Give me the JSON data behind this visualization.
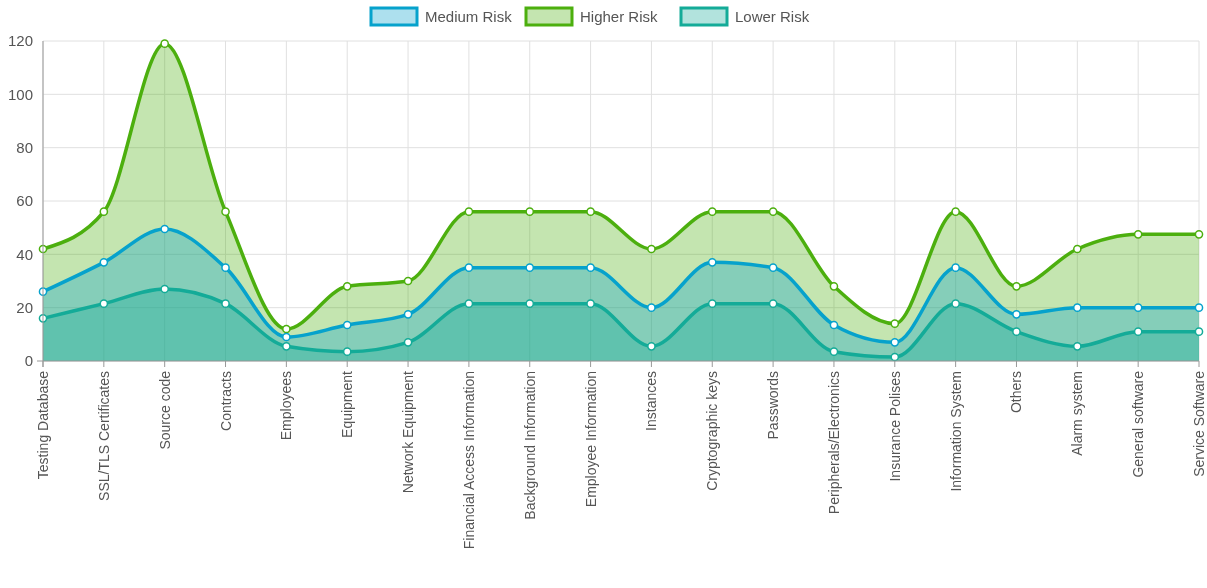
{
  "chart_data": {
    "type": "area",
    "categories": [
      "Testing Database",
      "SSL/TLS Certificates",
      "Source code",
      "Contracts",
      "Employees",
      "Equipment",
      "Network Equipment",
      "Financial Access Information",
      "Background Information",
      "Employee Information",
      "Instances",
      "Cryptographic keys",
      "Passwords",
      "Peripherals/Electronics",
      "Insurance Polises",
      "Information System",
      "Others",
      "Alarm system",
      "General software",
      "Service Software"
    ],
    "series": [
      {
        "name": "Higher Risk",
        "color": "#4caf0e",
        "values": [
          42,
          56,
          119,
          56,
          12,
          28,
          30,
          56,
          56,
          56,
          42,
          56,
          56,
          28,
          14,
          56,
          28,
          42,
          47.5,
          47.5
        ]
      },
      {
        "name": "Medium Risk",
        "color": "#06a2cc",
        "values": [
          26,
          37,
          49.5,
          35,
          9,
          13.5,
          17.5,
          35,
          35,
          35,
          20,
          37,
          35,
          13.5,
          7,
          35,
          17.5,
          20,
          20,
          20
        ]
      },
      {
        "name": "Lower Risk",
        "color": "#14ab98",
        "values": [
          16,
          21.5,
          27,
          21.5,
          5.5,
          3.5,
          7,
          21.5,
          21.5,
          21.5,
          5.5,
          21.5,
          21.5,
          3.5,
          1.5,
          21.5,
          11,
          5.5,
          11,
          11
        ]
      }
    ],
    "ylim": [
      0,
      120
    ],
    "yticks": [
      0,
      20,
      40,
      60,
      80,
      100,
      120
    ],
    "grid": true,
    "legend": "top",
    "marker": "circle"
  }
}
